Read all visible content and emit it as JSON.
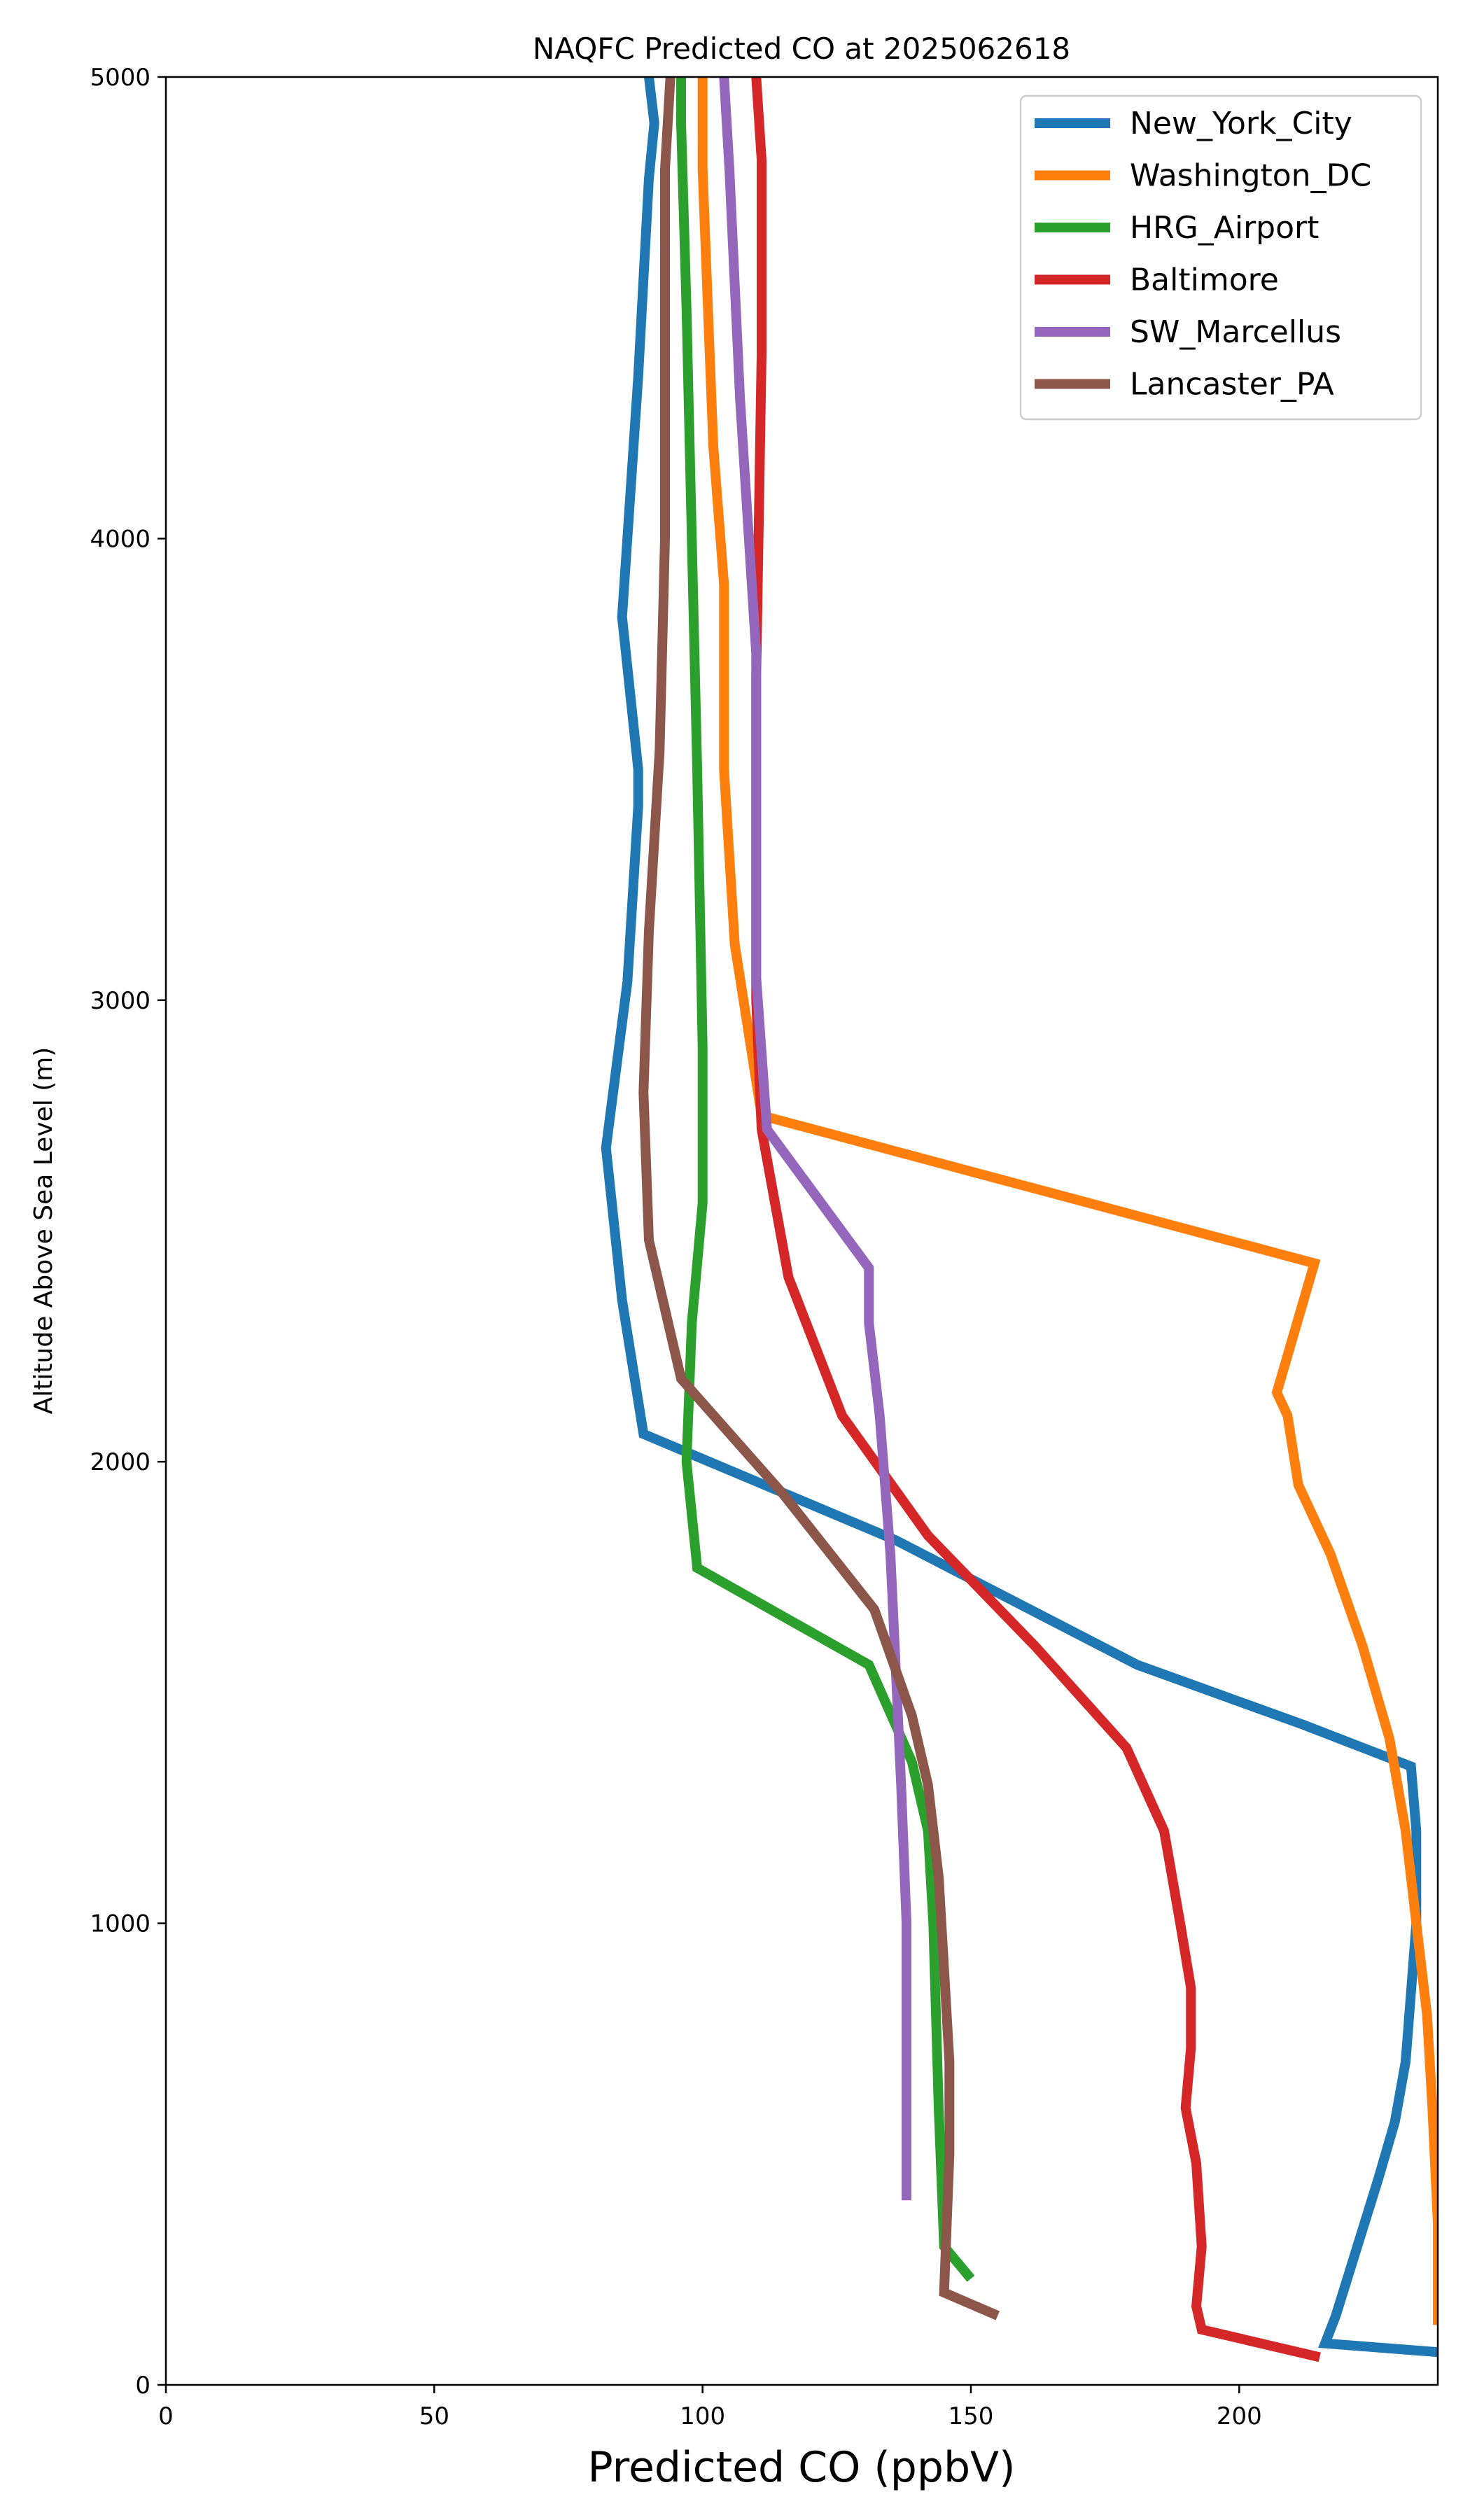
{
  "chart_data": {
    "type": "line",
    "title": "NAQFC Predicted CO at 2025062618",
    "xlabel": "Predicted CO (ppbV)",
    "ylabel": "Altitude Above Sea Level (m)",
    "xlim": [
      0,
      237
    ],
    "ylim": [
      0,
      5000
    ],
    "xticks": [
      0,
      50,
      100,
      150,
      200
    ],
    "yticks": [
      0,
      1000,
      2000,
      3000,
      4000,
      5000
    ],
    "grid": false,
    "legend_position": "top-right",
    "series": [
      {
        "name": "New_York_City",
        "color": "#1f77b4",
        "x": [
          238,
          216,
          218,
          222,
          226,
          229,
          231,
          232,
          233,
          233,
          232,
          212,
          181,
          136,
          89,
          85,
          82,
          86,
          88,
          88,
          85,
          88,
          90,
          91,
          90
        ],
        "y": [
          70,
          90,
          150,
          300,
          450,
          570,
          700,
          850,
          1000,
          1200,
          1340,
          1430,
          1560,
          1830,
          2060,
          2350,
          2680,
          3040,
          3420,
          3500,
          3830,
          4350,
          4780,
          4900,
          5000
        ]
      },
      {
        "name": "Washington_DC",
        "color": "#ff7f0e",
        "x": [
          237,
          237,
          236,
          235,
          233,
          231,
          228,
          223,
          217,
          211,
          209,
          207,
          214,
          111,
          106,
          104,
          104,
          102,
          101,
          100,
          100
        ],
        "y": [
          130,
          350,
          600,
          800,
          1000,
          1200,
          1400,
          1600,
          1800,
          1950,
          2100,
          2150,
          2430,
          2750,
          3120,
          3500,
          3900,
          4200,
          4500,
          4800,
          5000
        ]
      },
      {
        "name": "HRG_Airport",
        "color": "#2ca02c",
        "x": [
          150,
          145,
          144,
          143,
          142,
          139,
          131,
          99,
          97,
          98,
          100,
          100,
          99,
          98,
          97,
          96,
          96
        ],
        "y": [
          230,
          300,
          600,
          1000,
          1200,
          1350,
          1560,
          1770,
          2000,
          2300,
          2560,
          2900,
          3500,
          4000,
          4500,
          4900,
          5000
        ]
      },
      {
        "name": "Baltimore",
        "color": "#d62728",
        "x": [
          215,
          193,
          192,
          193,
          192,
          190,
          191,
          191,
          189,
          186,
          179,
          162,
          142,
          126,
          116,
          111,
          110,
          110,
          111,
          111,
          110
        ],
        "y": [
          60,
          120,
          170,
          300,
          480,
          600,
          730,
          860,
          1000,
          1200,
          1380,
          1600,
          1840,
          2100,
          2400,
          2720,
          3000,
          3700,
          4400,
          4820,
          5000
        ]
      },
      {
        "name": "SW_Marcellus",
        "color": "#9467bd",
        "x": [
          138,
          138,
          138,
          137,
          136,
          135,
          133,
          132,
          131,
          131,
          112,
          110,
          110,
          110,
          107,
          105,
          104
        ],
        "y": [
          400,
          600,
          1000,
          1300,
          1550,
          1800,
          2100,
          2200,
          2300,
          2420,
          2720,
          3050,
          3500,
          3750,
          4300,
          4800,
          5000
        ]
      },
      {
        "name": "Lancaster_PA",
        "color": "#8c564b",
        "x": [
          155,
          145,
          146,
          146,
          145,
          144,
          142,
          139,
          132,
          115,
          96,
          90,
          89,
          90,
          92,
          93,
          93,
          93,
          94
        ],
        "y": [
          150,
          200,
          500,
          700,
          900,
          1100,
          1300,
          1450,
          1680,
          1930,
          2180,
          2480,
          2800,
          3150,
          3540,
          4000,
          4400,
          4800,
          5000
        ]
      }
    ]
  }
}
